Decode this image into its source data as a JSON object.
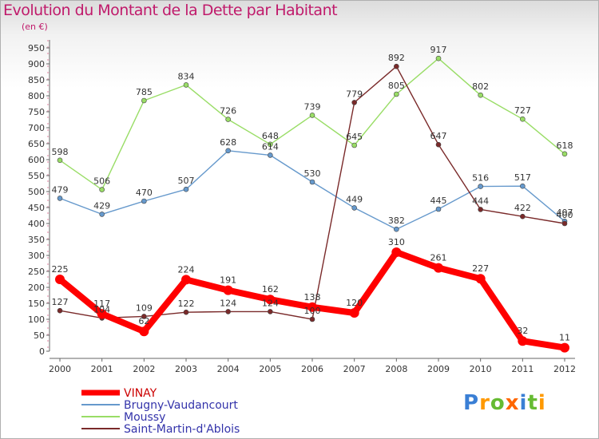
{
  "chart_data": {
    "type": "line",
    "title": "Evolution du Montant de la Dette par Habitant",
    "subtitle": "(en €)",
    "x": [
      "2000",
      "2001",
      "2002",
      "2003",
      "2004",
      "2005",
      "2006",
      "2007",
      "2008",
      "2009",
      "2010",
      "2011",
      "2012"
    ],
    "ylim": [
      0,
      950
    ],
    "yticks": [
      0,
      50,
      100,
      150,
      200,
      250,
      300,
      350,
      400,
      450,
      500,
      550,
      600,
      650,
      700,
      750,
      800,
      850,
      900,
      950
    ],
    "grid": false,
    "legend_position": "bottom",
    "series": [
      {
        "name": "VINAY",
        "color": "#ff0000",
        "values": [
          225,
          117,
          62,
          224,
          191,
          162,
          138,
          120,
          310,
          261,
          227,
          32,
          11
        ]
      },
      {
        "name": "Brugny-Vaudancourt",
        "color": "#6699cc",
        "values": [
          479,
          429,
          470,
          507,
          628,
          614,
          530,
          449,
          382,
          445,
          516,
          517,
          407
        ]
      },
      {
        "name": "Moussy",
        "color": "#99dd66",
        "values": [
          598,
          506,
          785,
          834,
          726,
          648,
          739,
          645,
          805,
          917,
          802,
          727,
          618
        ]
      },
      {
        "name": "Saint-Martin-d'Ablois",
        "color": "#7a2a2a",
        "values": [
          127,
          104,
          109,
          122,
          124,
          124,
          100,
          779,
          892,
          647,
          444,
          422,
          400
        ]
      }
    ]
  },
  "logo": {
    "letters": [
      "P",
      "r",
      "o",
      "x",
      "i",
      "t",
      "i"
    ],
    "colors": [
      "#3a7fd5",
      "#ff9900",
      "#66bb33",
      "#ff6600",
      "#3a7fd5",
      "#66bb33",
      "#ff9900"
    ]
  }
}
